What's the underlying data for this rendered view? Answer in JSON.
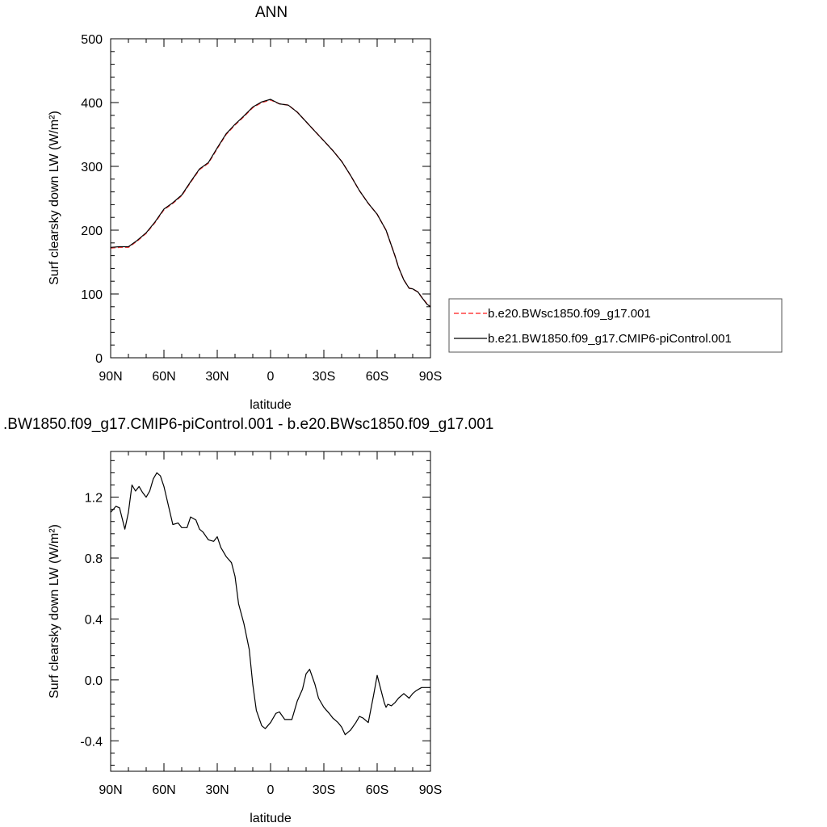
{
  "chart_data": [
    {
      "type": "line",
      "title": "ANN",
      "xlabel": "latitude",
      "ylabel": "Surf clearsky down LW (W/m²)",
      "xlim": [
        90,
        -90
      ],
      "ylim": [
        0,
        500
      ],
      "x_ticks": [
        90,
        60,
        30,
        0,
        -30,
        -60,
        -90
      ],
      "x_tick_labels": [
        "90N",
        "60N",
        "30N",
        "0",
        "30S",
        "60S",
        "90S"
      ],
      "y_ticks": [
        0,
        100,
        200,
        300,
        400,
        500
      ],
      "y_tick_labels": [
        "0",
        "100",
        "200",
        "300",
        "400",
        "500"
      ],
      "x": [
        90,
        85,
        80,
        75,
        70,
        65,
        60,
        55,
        50,
        45,
        40,
        35,
        30,
        25,
        20,
        15,
        10,
        5,
        0,
        -5,
        -10,
        -15,
        -20,
        -25,
        -30,
        -35,
        -40,
        -45,
        -50,
        -55,
        -60,
        -65,
        -70,
        -72,
        -75,
        -78,
        -80,
        -83,
        -85,
        -88,
        -90
      ],
      "series": [
        {
          "name": "b.e20.BWsc1850.f09_g17.001",
          "color": "#ff4040",
          "dash": true,
          "values": [
            172,
            173,
            173,
            183,
            195,
            212,
            232,
            242,
            254,
            275,
            295,
            305,
            328,
            350,
            365,
            378,
            392,
            400,
            404,
            398,
            396,
            385,
            370,
            355,
            340,
            325,
            308,
            286,
            262,
            242,
            225,
            200,
            160,
            142,
            122,
            109,
            108,
            103,
            95,
            85,
            80
          ]
        },
        {
          "name": "b.e21.BW1850.f09_g17.CMIP6-piControl.001",
          "color": "#000000",
          "dash": false,
          "values": [
            173,
            174,
            174,
            184,
            196,
            213,
            233,
            243,
            255,
            276,
            296,
            306,
            329,
            351,
            366,
            379,
            393,
            401,
            405,
            398,
            396,
            385,
            370,
            355,
            340,
            325,
            308,
            286,
            262,
            242,
            225,
            200,
            160,
            142,
            122,
            109,
            108,
            103,
            95,
            84,
            80
          ]
        }
      ],
      "legend_position": "right"
    },
    {
      "type": "line",
      "title": ".BW1850.f09_g17.CMIP6-piControl.001 - b.e20.BWsc1850.f09_g17.001",
      "xlabel": "latitude",
      "ylabel": "Surf clearsky down LW (W/m²)",
      "xlim": [
        90,
        -90
      ],
      "ylim": [
        -0.6,
        1.5
      ],
      "x_ticks": [
        90,
        60,
        30,
        0,
        -30,
        -60,
        -90
      ],
      "x_tick_labels": [
        "90N",
        "60N",
        "30N",
        "0",
        "30S",
        "60S",
        "90S"
      ],
      "y_ticks": [
        -0.4,
        0.0,
        0.4,
        0.8,
        1.2
      ],
      "y_tick_labels": [
        "-0.4",
        "0.0",
        "0.4",
        "0.8",
        "1.2"
      ],
      "x": [
        90,
        87,
        85,
        82,
        80,
        78,
        76,
        74,
        72,
        70,
        68,
        66,
        64,
        62,
        60,
        58,
        55,
        52,
        50,
        47,
        45,
        42,
        40,
        38,
        35,
        32,
        30,
        28,
        25,
        22,
        20,
        18,
        15,
        12,
        10,
        8,
        5,
        3,
        0,
        -3,
        -5,
        -8,
        -10,
        -12,
        -15,
        -18,
        -20,
        -22,
        -25,
        -27,
        -30,
        -33,
        -35,
        -38,
        -40,
        -42,
        -45,
        -48,
        -50,
        -52,
        -55,
        -58,
        -60,
        -62,
        -64,
        -65,
        -66,
        -68,
        -70,
        -72,
        -75,
        -78,
        -80,
        -82,
        -85,
        -87,
        -90
      ],
      "series": [
        {
          "name": "",
          "color": "#000000",
          "dash": false,
          "values": [
            1.1,
            1.14,
            1.13,
            0.99,
            1.1,
            1.28,
            1.24,
            1.27,
            1.23,
            1.2,
            1.24,
            1.32,
            1.36,
            1.34,
            1.27,
            1.17,
            1.02,
            1.03,
            1.0,
            1.0,
            1.07,
            1.05,
            0.99,
            0.97,
            0.92,
            0.91,
            0.94,
            0.87,
            0.81,
            0.77,
            0.68,
            0.5,
            0.37,
            0.2,
            -0.03,
            -0.2,
            -0.3,
            -0.32,
            -0.28,
            -0.22,
            -0.21,
            -0.26,
            -0.26,
            -0.26,
            -0.14,
            -0.06,
            0.04,
            0.07,
            -0.03,
            -0.12,
            -0.18,
            -0.22,
            -0.25,
            -0.28,
            -0.31,
            -0.36,
            -0.33,
            -0.28,
            -0.24,
            -0.25,
            -0.28,
            -0.1,
            0.03,
            -0.06,
            -0.15,
            -0.18,
            -0.16,
            -0.17,
            -0.15,
            -0.12,
            -0.09,
            -0.12,
            -0.09,
            -0.07,
            -0.05,
            -0.05,
            -0.05
          ]
        }
      ]
    }
  ]
}
